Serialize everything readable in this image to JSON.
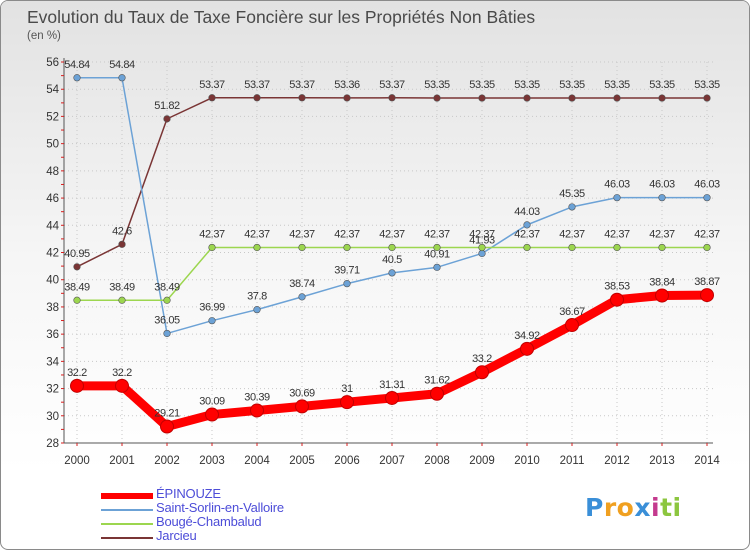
{
  "header": {
    "title": "Evolution du Taux de Taxe Foncière sur les Propriétés Non Bâties",
    "unit": "(en %)"
  },
  "chart_data": {
    "type": "line",
    "title": "Evolution du Taux de Taxe Foncière sur les Propriétés Non Bâties",
    "ylabel": "(en %)",
    "xlabel": "",
    "ylim": [
      28,
      56
    ],
    "yticks": [
      28,
      30,
      32,
      34,
      36,
      38,
      40,
      42,
      44,
      46,
      48,
      50,
      52,
      54,
      56
    ],
    "categories": [
      "2000",
      "2001",
      "2002",
      "2003",
      "2004",
      "2005",
      "2006",
      "2007",
      "2008",
      "2009",
      "2010",
      "2011",
      "2012",
      "2013",
      "2014"
    ],
    "series": [
      {
        "name": "ÉPINOUZE",
        "color": "#ff0000",
        "values": [
          32.2,
          32.2,
          29.21,
          30.09,
          30.39,
          30.69,
          31,
          31.31,
          31.62,
          33.2,
          34.92,
          36.67,
          38.53,
          38.84,
          38.87
        ],
        "labels": [
          "32.2",
          "32.2",
          "29.21",
          "30.09",
          "30.39",
          "30.69",
          "31",
          "31.31",
          "31.62",
          "33.2",
          "34.92",
          "36.67",
          "38.53",
          "38.84",
          "38.87"
        ]
      },
      {
        "name": "Saint-Sorlin-en-Valloire",
        "color": "#6ca2d6",
        "values": [
          54.84,
          54.84,
          36.05,
          36.99,
          37.8,
          38.74,
          39.71,
          40.5,
          40.91,
          41.93,
          44.03,
          45.35,
          46.03,
          46.03,
          46.03
        ],
        "labels": [
          "54.84",
          "54.84",
          "36.05",
          "36.99",
          "37.8",
          "38.74",
          "39.71",
          "40.5",
          "40.91",
          "41.93",
          "44.03",
          "45.35",
          "46.03",
          "46.03",
          "46.03"
        ]
      },
      {
        "name": "Bougé-Chambalud",
        "color": "#9cd64f",
        "values": [
          38.49,
          38.49,
          38.49,
          42.37,
          42.37,
          42.37,
          42.37,
          42.37,
          42.37,
          42.37,
          42.37,
          42.37,
          42.37,
          42.37,
          42.37
        ],
        "labels": [
          "38.49",
          "38.49",
          "38.49",
          "42.37",
          "42.37",
          "42.37",
          "42.37",
          "42.37",
          "42.37",
          "42.37",
          "42.37",
          "42.37",
          "42.37",
          "42.37",
          "42.37"
        ]
      },
      {
        "name": "Jarcieu",
        "color": "#7a3535",
        "values": [
          40.95,
          42.6,
          51.82,
          53.37,
          53.37,
          53.37,
          53.36,
          53.37,
          53.35,
          53.35,
          53.35,
          53.35,
          53.35,
          53.35,
          53.35
        ],
        "labels": [
          "40.95",
          "42.6",
          "51.82",
          "53.37",
          "53.37",
          "53.37",
          "53.36",
          "53.37",
          "53.35",
          "53.35",
          "53.35",
          "53.35",
          "53.35",
          "53.35",
          "53.35"
        ]
      }
    ]
  },
  "legend": {
    "items": [
      {
        "label": "ÉPINOUZE",
        "color": "#ff0000"
      },
      {
        "label": "Saint-Sorlin-en-Valloire",
        "color": "#6ca2d6"
      },
      {
        "label": "Bougé-Chambalud",
        "color": "#9cd64f"
      },
      {
        "label": "Jarcieu",
        "color": "#7a3535"
      }
    ]
  },
  "brand": {
    "letters": [
      "P",
      "r",
      "o",
      "x",
      "i",
      "t",
      "i"
    ],
    "colors": [
      "#3a8fd8",
      "#f0a020",
      "#f0a020",
      "#3a8fd8",
      "#c43a8e",
      "#8cc63f",
      "#8cc63f"
    ]
  }
}
